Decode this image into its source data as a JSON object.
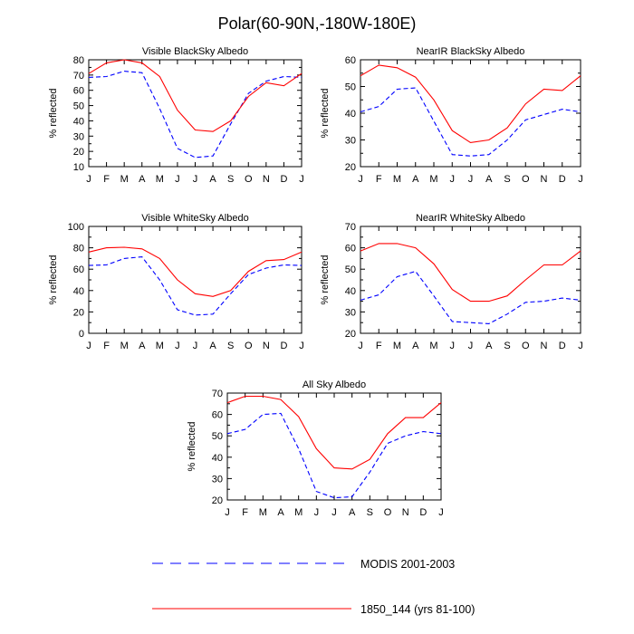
{
  "title": "Polar(60-90N,-180W-180E)",
  "colors": {
    "modis": "#0000ff",
    "model": "#ff0000",
    "frame": "#000000"
  },
  "legend": {
    "items": [
      {
        "label": "MODIS 2001-2003",
        "series": "MODIS",
        "style": "dashed",
        "color": "#0000ff"
      },
      {
        "label": "1850_144 (yrs 81-100)",
        "series": "Model",
        "style": "solid",
        "color": "#ff0000"
      }
    ]
  },
  "chart_data": [
    {
      "type": "line",
      "title": "Visible BlackSky Albedo",
      "ylabel": "% reflected",
      "xlabel": "",
      "categories": [
        "J",
        "F",
        "M",
        "A",
        "M",
        "J",
        "J",
        "A",
        "S",
        "O",
        "N",
        "D",
        "J"
      ],
      "ylim": [
        10,
        80
      ],
      "yticks": [
        10,
        20,
        30,
        40,
        50,
        60,
        70,
        80
      ],
      "series": [
        {
          "name": "MODIS 2001-2003",
          "style": "dashed",
          "color": "#0000ff",
          "values": [
            68.5,
            69,
            72.5,
            71.5,
            48,
            22,
            16,
            17,
            38,
            58,
            66,
            69,
            68.5
          ]
        },
        {
          "name": "1850_144 (yrs 81-100)",
          "style": "solid",
          "color": "#ff0000",
          "values": [
            71,
            78,
            80,
            78,
            69,
            47,
            34,
            33,
            40,
            56,
            65,
            63,
            71
          ]
        }
      ]
    },
    {
      "type": "line",
      "title": "NearIR BlackSky Albedo",
      "ylabel": "% reflected",
      "xlabel": "",
      "categories": [
        "J",
        "F",
        "M",
        "A",
        "M",
        "J",
        "J",
        "A",
        "S",
        "O",
        "N",
        "D",
        "J"
      ],
      "ylim": [
        20,
        60
      ],
      "yticks": [
        20,
        30,
        40,
        50,
        60
      ],
      "series": [
        {
          "name": "MODIS 2001-2003",
          "style": "dashed",
          "color": "#0000ff",
          "values": [
            40.5,
            42.5,
            49,
            49.5,
            37,
            24.5,
            24,
            24.5,
            30,
            37.5,
            39.5,
            41.5,
            40.5
          ]
        },
        {
          "name": "1850_144 (yrs 81-100)",
          "style": "solid",
          "color": "#ff0000",
          "values": [
            54,
            58,
            57,
            53.5,
            45,
            33.5,
            29,
            30,
            34.5,
            43.5,
            49,
            48.5,
            54
          ]
        }
      ]
    },
    {
      "type": "line",
      "title": "Visible WhiteSky Albedo",
      "ylabel": "% reflected",
      "xlabel": "",
      "categories": [
        "J",
        "F",
        "M",
        "A",
        "M",
        "J",
        "J",
        "A",
        "S",
        "O",
        "N",
        "D",
        "J"
      ],
      "ylim": [
        0,
        100
      ],
      "yticks": [
        0,
        20,
        40,
        60,
        80,
        100
      ],
      "series": [
        {
          "name": "MODIS 2001-2003",
          "style": "dashed",
          "color": "#0000ff",
          "values": [
            63.5,
            64,
            70,
            71.5,
            50,
            22,
            17,
            18,
            37,
            55,
            61,
            64,
            63.5
          ]
        },
        {
          "name": "1850_144 (yrs 81-100)",
          "style": "solid",
          "color": "#ff0000",
          "values": [
            76,
            80,
            80.5,
            79,
            70,
            50,
            37,
            34.5,
            40,
            58,
            68,
            69,
            76
          ]
        }
      ]
    },
    {
      "type": "line",
      "title": "NearIR WhiteSky Albedo",
      "ylabel": "% reflected",
      "xlabel": "",
      "categories": [
        "J",
        "F",
        "M",
        "A",
        "M",
        "J",
        "J",
        "A",
        "S",
        "O",
        "N",
        "D",
        "J"
      ],
      "ylim": [
        20,
        70
      ],
      "yticks": [
        20,
        30,
        40,
        50,
        60,
        70
      ],
      "series": [
        {
          "name": "MODIS 2001-2003",
          "style": "dashed",
          "color": "#0000ff",
          "values": [
            35.5,
            38,
            46.5,
            49,
            37.5,
            25.5,
            25,
            24.5,
            29,
            34.5,
            35,
            36.5,
            35.5
          ]
        },
        {
          "name": "1850_144 (yrs 81-100)",
          "style": "solid",
          "color": "#ff0000",
          "values": [
            58.5,
            62,
            62,
            60,
            52.5,
            40.5,
            35,
            35,
            37.5,
            45,
            52,
            52,
            58.5
          ]
        }
      ]
    },
    {
      "type": "line",
      "title": "All Sky Albedo",
      "ylabel": "% reflected",
      "xlabel": "",
      "categories": [
        "J",
        "F",
        "M",
        "A",
        "M",
        "J",
        "J",
        "A",
        "S",
        "O",
        "N",
        "D",
        "J"
      ],
      "ylim": [
        20,
        70
      ],
      "yticks": [
        20,
        30,
        40,
        50,
        60,
        70
      ],
      "series": [
        {
          "name": "MODIS 2001-2003",
          "style": "dashed",
          "color": "#0000ff",
          "values": [
            51,
            53,
            60,
            60.5,
            44,
            24,
            21,
            21.5,
            33,
            46.5,
            50,
            52,
            51
          ]
        },
        {
          "name": "1850_144 (yrs 81-100)",
          "style": "solid",
          "color": "#ff0000",
          "values": [
            65.5,
            68.5,
            68.5,
            67,
            59,
            44,
            35,
            34.5,
            39,
            51,
            58.5,
            58.5,
            65.5
          ]
        }
      ]
    }
  ]
}
